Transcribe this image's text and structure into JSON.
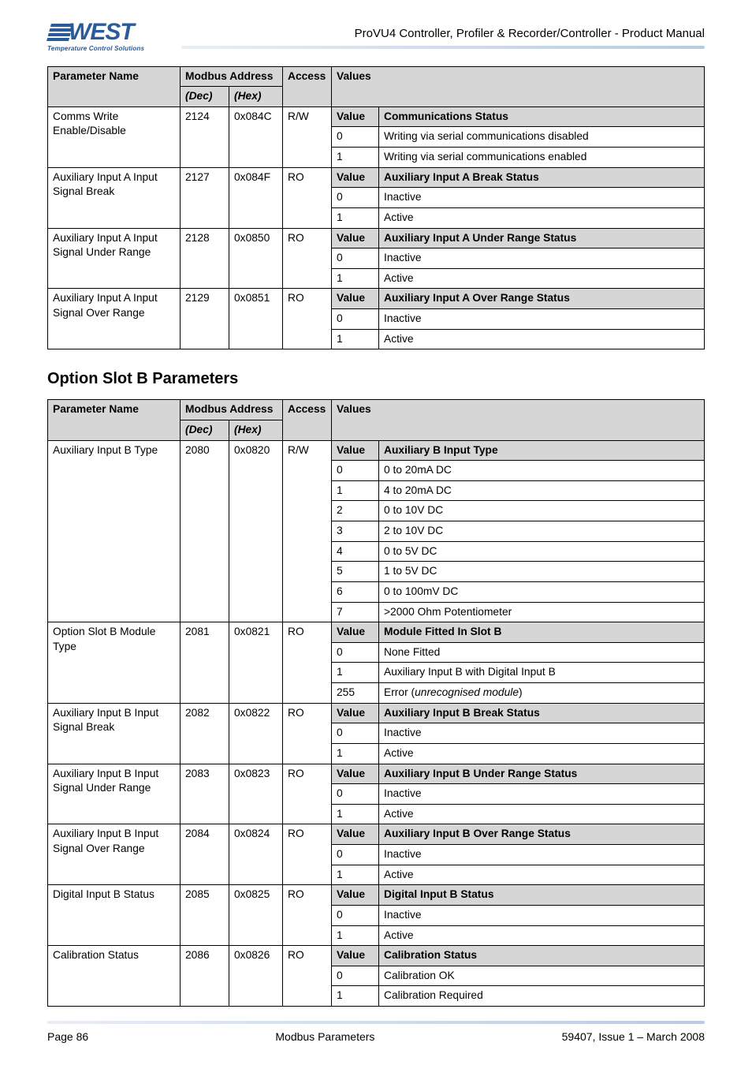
{
  "header": {
    "logo_text": "WEST",
    "logo_tagline": "Temperature Control Solutions",
    "doc_title": "ProVU4 Controller, Profiler & Recorder/Controller - Product Manual"
  },
  "section_b_title": "Option Slot B Parameters",
  "table_headers": {
    "param": "Parameter Name",
    "addr": "Modbus Address",
    "dec": "(Dec)",
    "hex": "(Hex)",
    "access": "Access",
    "values": "Values"
  },
  "tableA": [
    {
      "name": "Comms Write Enable/Disable",
      "dec": "2124",
      "hex": "0x084C",
      "access": "R/W",
      "value_header": "Communications Status",
      "rows": [
        {
          "k": "0",
          "v": "Writing via serial communications disabled"
        },
        {
          "k": "1",
          "v": "Writing via serial communications enabled"
        }
      ]
    },
    {
      "name": "Auxiliary Input A Input Signal Break",
      "dec": "2127",
      "hex": "0x084F",
      "access": "RO",
      "value_header": "Auxiliary Input A Break Status",
      "rows": [
        {
          "k": "0",
          "v": "Inactive"
        },
        {
          "k": "1",
          "v": "Active"
        }
      ]
    },
    {
      "name": "Auxiliary Input A Input Signal Under Range",
      "dec": "2128",
      "hex": "0x0850",
      "access": "RO",
      "value_header": "Auxiliary Input A Under Range Status",
      "rows": [
        {
          "k": "0",
          "v": "Inactive"
        },
        {
          "k": "1",
          "v": "Active"
        }
      ]
    },
    {
      "name": "Auxiliary Input A Input Signal Over Range",
      "dec": "2129",
      "hex": "0x0851",
      "access": "RO",
      "value_header": "Auxiliary Input A Over Range Status",
      "rows": [
        {
          "k": "0",
          "v": "Inactive"
        },
        {
          "k": "1",
          "v": "Active"
        }
      ]
    }
  ],
  "tableB": [
    {
      "name": "Auxiliary Input B Type",
      "dec": "2080",
      "hex": "0x0820",
      "access": "R/W",
      "value_header": "Auxiliary B Input Type",
      "rows": [
        {
          "k": "0",
          "v": "0 to 20mA DC"
        },
        {
          "k": "1",
          "v": "4 to 20mA DC"
        },
        {
          "k": "2",
          "v": "0 to 10V DC"
        },
        {
          "k": "3",
          "v": "2 to 10V DC"
        },
        {
          "k": "4",
          "v": "0 to 5V DC"
        },
        {
          "k": "5",
          "v": "1 to 5V DC"
        },
        {
          "k": "6",
          "v": "0 to 100mV DC"
        },
        {
          "k": "7",
          "v": ">2000 Ohm Potentiometer"
        }
      ]
    },
    {
      "name": "Option Slot B Module Type",
      "dec": "2081",
      "hex": "0x0821",
      "access": "RO",
      "value_header": "Module Fitted In Slot B",
      "rows": [
        {
          "k": "0",
          "v": "None Fitted"
        },
        {
          "k": "1",
          "v": "Auxiliary Input B with Digital Input B"
        },
        {
          "k": "255",
          "v": "Error (<i>unrecognised module</i>)",
          "html": true
        }
      ]
    },
    {
      "name": "Auxiliary Input B Input Signal Break",
      "dec": "2082",
      "hex": "0x0822",
      "access": "RO",
      "value_header": "Auxiliary Input B Break Status",
      "rows": [
        {
          "k": "0",
          "v": "Inactive"
        },
        {
          "k": "1",
          "v": "Active"
        }
      ]
    },
    {
      "name": "Auxiliary Input B Input Signal Under Range",
      "dec": "2083",
      "hex": "0x0823",
      "access": "RO",
      "value_header": "Auxiliary Input B Under Range Status",
      "rows": [
        {
          "k": "0",
          "v": "Inactive"
        },
        {
          "k": "1",
          "v": "Active"
        }
      ]
    },
    {
      "name": "Auxiliary Input B Input Signal Over Range",
      "dec": "2084",
      "hex": "0x0824",
      "access": "RO",
      "value_header": "Auxiliary Input B Over Range Status",
      "rows": [
        {
          "k": "0",
          "v": "Inactive"
        },
        {
          "k": "1",
          "v": "Active"
        }
      ]
    },
    {
      "name": "Digital Input B Status",
      "dec": "2085",
      "hex": "0x0825",
      "access": "RO",
      "value_header": "Digital Input B Status",
      "rows": [
        {
          "k": "0",
          "v": "Inactive"
        },
        {
          "k": "1",
          "v": "Active"
        }
      ]
    },
    {
      "name": "Calibration Status",
      "dec": "2086",
      "hex": "0x0826",
      "access": "RO",
      "value_header": "Calibration Status",
      "rows": [
        {
          "k": "0",
          "v": "Calibration OK"
        },
        {
          "k": "1",
          "v": "Calibration Required"
        }
      ]
    }
  ],
  "value_label": "Value",
  "footer": {
    "left": "Page 86",
    "center": "Modbus Parameters",
    "right": "59407, Issue 1 – March 2008"
  }
}
